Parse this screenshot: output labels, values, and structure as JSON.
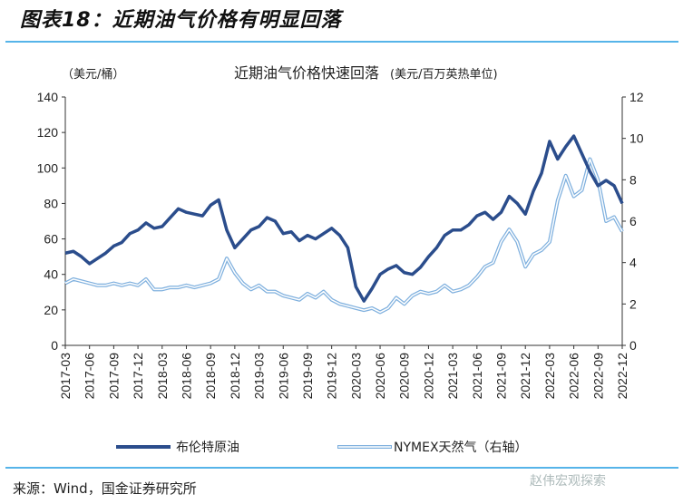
{
  "figure_title": "图表18：近期油气价格有明显回落",
  "source": "来源：Wind，国金证券研究所",
  "watermark": "赵伟宏观探索",
  "colors": {
    "brent": "#2b4d8c",
    "gas_outline": "#7fb0de",
    "rule": "#56b4e9"
  },
  "chart_data": {
    "type": "line",
    "title": "近期油气价格快速回落",
    "ylabel_left": "（美元/桶）",
    "ylabel_right": "(美元/百万英热单位)",
    "ylim_left": [
      0,
      140
    ],
    "ylim_right": [
      0,
      12
    ],
    "yticks_left": [
      0,
      20,
      40,
      60,
      80,
      100,
      120,
      140
    ],
    "yticks_right": [
      0,
      2,
      4,
      6,
      8,
      10,
      12
    ],
    "xticks": [
      "2017-03",
      "2017-06",
      "2017-09",
      "2017-12",
      "2018-03",
      "2018-06",
      "2018-09",
      "2018-12",
      "2019-03",
      "2019-06",
      "2019-09",
      "2019-12",
      "2020-03",
      "2020-06",
      "2020-09",
      "2020-12",
      "2021-03",
      "2021-06",
      "2021-09",
      "2021-12",
      "2022-03",
      "2022-06",
      "2022-09",
      "2022-12"
    ],
    "x_start": "2017-03",
    "x_end": "2022-12",
    "grid": false,
    "legend": "bottom",
    "series": [
      {
        "name": "布伦特原油",
        "axis": "left",
        "values": [
          52,
          53,
          50,
          46,
          49,
          52,
          56,
          58,
          63,
          65,
          69,
          66,
          67,
          72,
          77,
          75,
          74,
          73,
          79,
          82,
          65,
          55,
          60,
          65,
          67,
          72,
          70,
          63,
          64,
          59,
          62,
          60,
          63,
          66,
          62,
          55,
          33,
          25,
          32,
          40,
          43,
          45,
          41,
          40,
          44,
          50,
          55,
          62,
          65,
          65,
          68,
          73,
          75,
          71,
          75,
          84,
          80,
          74,
          87,
          97,
          115,
          105,
          112,
          118,
          108,
          98,
          90,
          93,
          90,
          80
        ]
      },
      {
        "name": "NYMEX天然气（右轴）",
        "axis": "right",
        "values": [
          3.0,
          3.2,
          3.1,
          3.0,
          2.9,
          2.9,
          3.0,
          2.9,
          3.0,
          2.9,
          3.2,
          2.7,
          2.7,
          2.8,
          2.8,
          2.9,
          2.8,
          2.9,
          3.0,
          3.2,
          4.2,
          3.5,
          3.0,
          2.7,
          2.9,
          2.6,
          2.6,
          2.4,
          2.3,
          2.2,
          2.5,
          2.3,
          2.6,
          2.2,
          2.0,
          1.9,
          1.8,
          1.7,
          1.8,
          1.6,
          1.8,
          2.3,
          2.0,
          2.4,
          2.6,
          2.5,
          2.6,
          2.9,
          2.6,
          2.7,
          2.9,
          3.3,
          3.8,
          4.0,
          5.0,
          5.6,
          5.0,
          3.8,
          4.4,
          4.6,
          5.0,
          7.0,
          8.2,
          7.2,
          7.5,
          9.0,
          8.0,
          6.0,
          6.2,
          5.5
        ]
      }
    ]
  }
}
